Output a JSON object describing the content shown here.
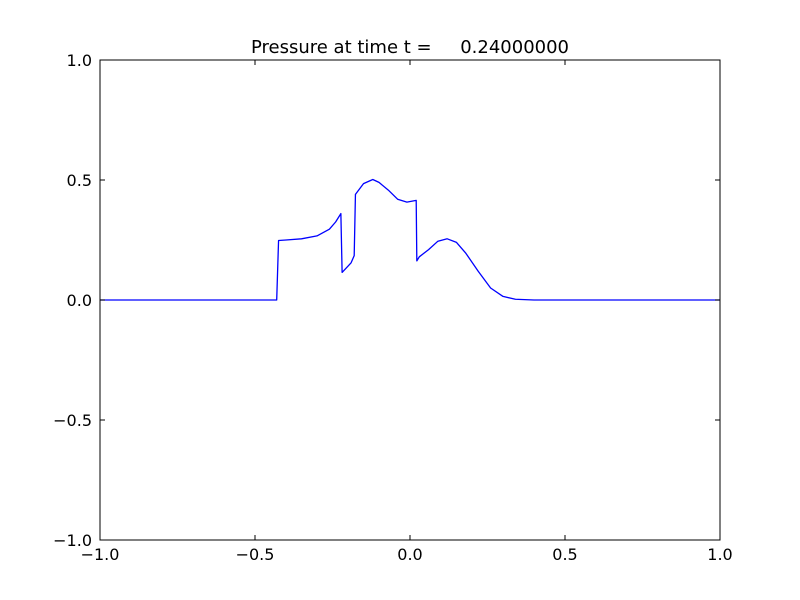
{
  "chart_data": {
    "type": "line",
    "title": "Pressure at time t =     0.24000000",
    "xlabel": "",
    "ylabel": "",
    "xlim": [
      -1.0,
      1.0
    ],
    "ylim": [
      -1.0,
      1.0
    ],
    "xticks": [
      -1.0,
      -0.5,
      0.0,
      0.5,
      1.0
    ],
    "xtick_labels": [
      "−1.0",
      "−0.5",
      "0.0",
      "0.5",
      "1.0"
    ],
    "yticks": [
      -1.0,
      -0.5,
      0.0,
      0.5,
      1.0
    ],
    "ytick_labels": [
      "−1.0",
      "−0.5",
      "0.0",
      "0.5",
      "1.0"
    ],
    "grid": false,
    "legend": "none",
    "series": [
      {
        "color": "#0000ff",
        "x": [
          -1.0,
          -0.43,
          -0.424,
          -0.4,
          -0.35,
          -0.3,
          -0.26,
          -0.24,
          -0.223,
          -0.219,
          -0.19,
          -0.18,
          -0.176,
          -0.15,
          -0.12,
          -0.1,
          -0.07,
          -0.04,
          -0.01,
          0.02,
          0.022,
          0.03,
          0.06,
          0.09,
          0.12,
          0.15,
          0.18,
          0.22,
          0.26,
          0.3,
          0.34,
          0.4,
          0.5,
          1.0
        ],
        "y": [
          0.0,
          0.0,
          0.248,
          0.25,
          0.255,
          0.267,
          0.295,
          0.325,
          0.36,
          0.115,
          0.155,
          0.185,
          0.44,
          0.485,
          0.502,
          0.49,
          0.458,
          0.42,
          0.408,
          0.415,
          0.163,
          0.18,
          0.21,
          0.245,
          0.255,
          0.24,
          0.195,
          0.12,
          0.05,
          0.015,
          0.003,
          0.0,
          0.0,
          0.0
        ]
      }
    ]
  }
}
